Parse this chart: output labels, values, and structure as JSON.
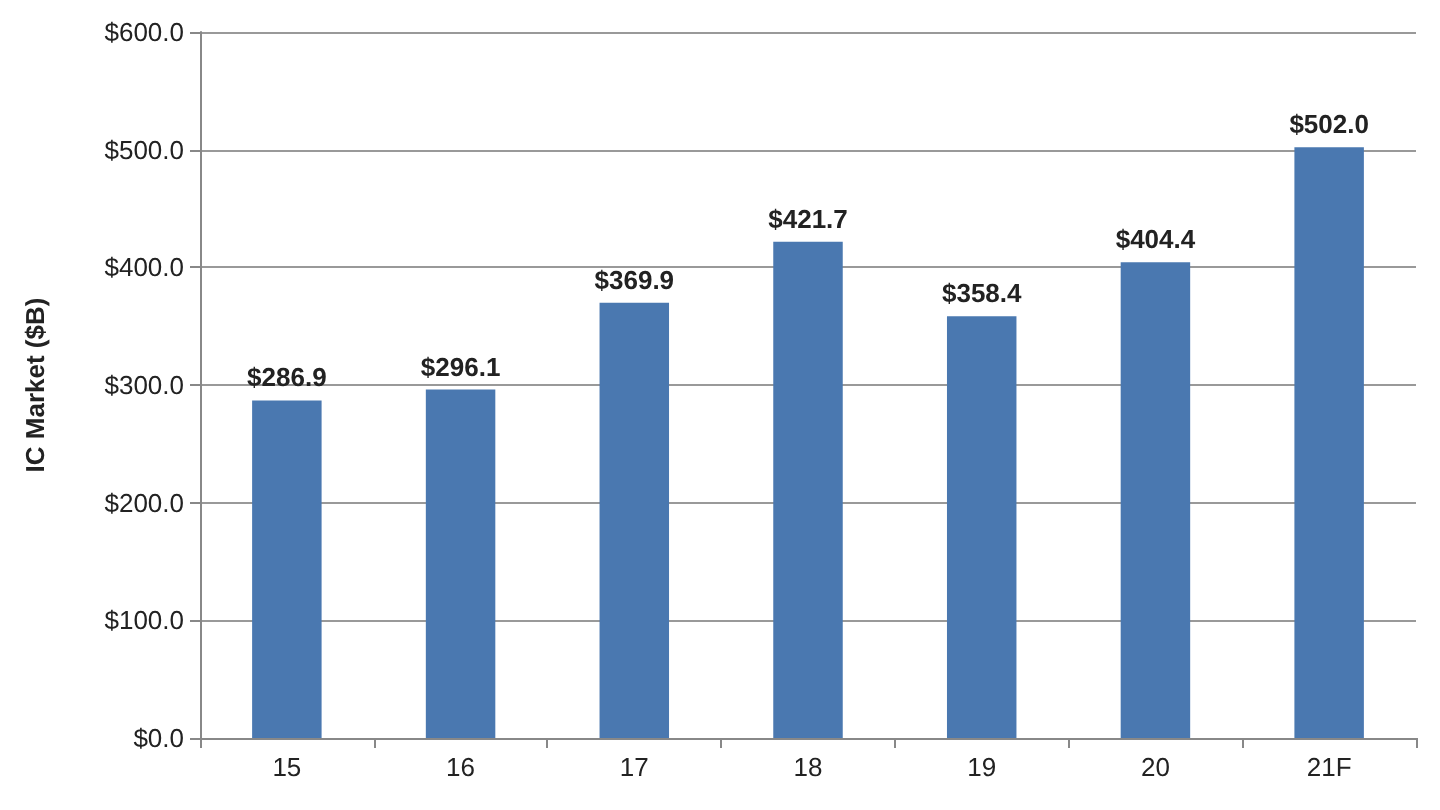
{
  "chart_data": {
    "type": "bar",
    "ylabel": "IC Market ($B)",
    "categories": [
      "15",
      "16",
      "17",
      "18",
      "19",
      "20",
      "21F"
    ],
    "values": [
      286.9,
      296.1,
      369.9,
      421.7,
      358.4,
      404.4,
      502.0
    ],
    "value_labels": [
      "$286.9",
      "$296.1",
      "$369.9",
      "$421.7",
      "$358.4",
      "$404.4",
      "$502.0"
    ],
    "color": "#4a78b0",
    "ylim": [
      0,
      600
    ],
    "yticks": [
      {
        "value": 0,
        "label": "$0.0"
      },
      {
        "value": 100,
        "label": "$100.0"
      },
      {
        "value": 200,
        "label": "$200.0"
      },
      {
        "value": 300,
        "label": "$300.0"
      },
      {
        "value": 400,
        "label": "$400.0"
      },
      {
        "value": 500,
        "label": "$500.0"
      },
      {
        "value": 600,
        "label": "$600.0"
      }
    ],
    "grid": "y"
  }
}
